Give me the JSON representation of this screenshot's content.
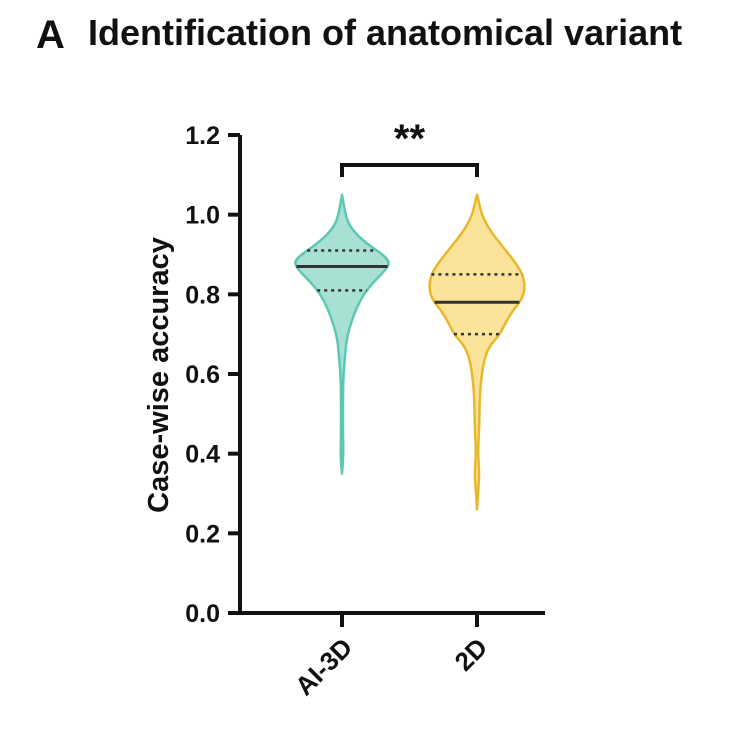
{
  "panel_label": "A",
  "chart_data": {
    "type": "violin",
    "title": "Identification of anatomical variant",
    "xlabel": "",
    "ylabel": "Case-wise accuracy",
    "ylim": [
      0,
      1.2
    ],
    "yticks": [
      "0.0",
      "0.2",
      "0.4",
      "0.6",
      "0.8",
      "1.0",
      "1.2"
    ],
    "categories": [
      "AI-3D",
      "2D"
    ],
    "series": [
      {
        "category": "AI-3D",
        "color": "#5cc8b4",
        "fill": "#a8e0d4",
        "min": 0.35,
        "max": 1.05,
        "median": 0.87,
        "q1": 0.81,
        "q3": 0.91,
        "density": [
          [
            0.35,
            0.0
          ],
          [
            0.39,
            0.03
          ],
          [
            0.45,
            0.02
          ],
          [
            0.55,
            0.02
          ],
          [
            0.6,
            0.03
          ],
          [
            0.64,
            0.06
          ],
          [
            0.67,
            0.08
          ],
          [
            0.7,
            0.12
          ],
          [
            0.74,
            0.22
          ],
          [
            0.77,
            0.32
          ],
          [
            0.8,
            0.45
          ],
          [
            0.83,
            0.65
          ],
          [
            0.86,
            0.9
          ],
          [
            0.88,
            1.0
          ],
          [
            0.9,
            0.85
          ],
          [
            0.92,
            0.6
          ],
          [
            0.95,
            0.3
          ],
          [
            0.98,
            0.12
          ],
          [
            1.01,
            0.06
          ],
          [
            1.05,
            0.0
          ]
        ]
      },
      {
        "category": "2D",
        "color": "#e8b82a",
        "fill": "#fbe39a",
        "min": 0.26,
        "max": 1.05,
        "median": 0.78,
        "q1": 0.7,
        "q3": 0.85,
        "density": [
          [
            0.26,
            0.0
          ],
          [
            0.3,
            0.02
          ],
          [
            0.35,
            0.05
          ],
          [
            0.4,
            0.02
          ],
          [
            0.45,
            0.04
          ],
          [
            0.5,
            0.05
          ],
          [
            0.55,
            0.06
          ],
          [
            0.6,
            0.1
          ],
          [
            0.64,
            0.16
          ],
          [
            0.67,
            0.26
          ],
          [
            0.7,
            0.48
          ],
          [
            0.73,
            0.6
          ],
          [
            0.76,
            0.75
          ],
          [
            0.79,
            0.95
          ],
          [
            0.82,
            1.0
          ],
          [
            0.85,
            0.95
          ],
          [
            0.88,
            0.8
          ],
          [
            0.91,
            0.6
          ],
          [
            0.94,
            0.4
          ],
          [
            0.97,
            0.22
          ],
          [
            1.0,
            0.1
          ],
          [
            1.03,
            0.04
          ],
          [
            1.05,
            0.0
          ]
        ]
      }
    ],
    "significance": {
      "from": "AI-3D",
      "to": "2D",
      "label": "**"
    }
  }
}
